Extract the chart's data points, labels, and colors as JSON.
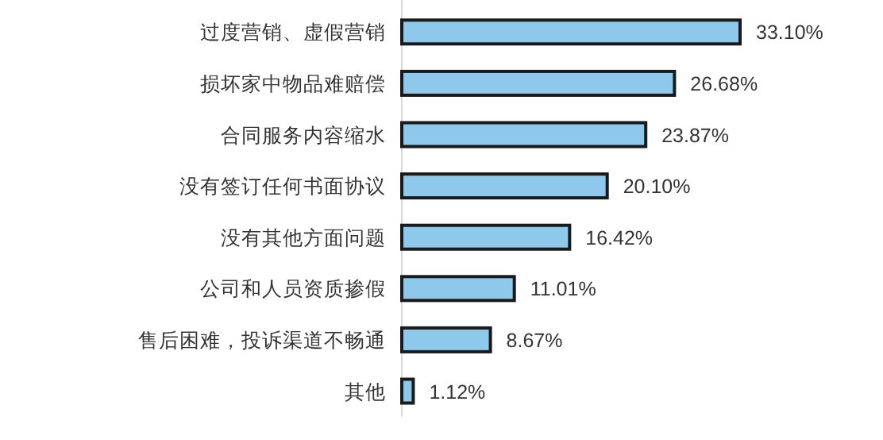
{
  "chart_data": {
    "type": "bar",
    "orientation": "horizontal",
    "categories": [
      "过度营销、虚假营销",
      "损坏家中物品难赔偿",
      "合同服务内容缩水",
      "没有签订任何书面协议",
      "没有其他方面问题",
      "公司和人员资质掺假",
      "售后困难，投诉渠道不畅通",
      "其他"
    ],
    "values": [
      33.1,
      26.68,
      23.87,
      20.1,
      16.42,
      11.01,
      8.67,
      1.12
    ],
    "value_labels": [
      "33.10%",
      "26.68%",
      "23.87%",
      "20.10%",
      "16.42%",
      "11.01%",
      "8.67%",
      "1.12%"
    ],
    "color": "#8ec8ea"
  }
}
